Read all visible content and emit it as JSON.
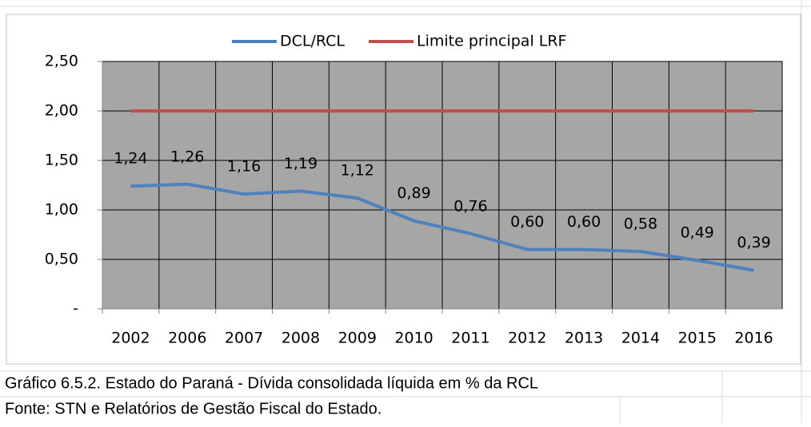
{
  "chart_data": {
    "type": "line",
    "categories": [
      "2002",
      "2006",
      "2007",
      "2008",
      "2009",
      "2010",
      "2011",
      "2012",
      "2013",
      "2014",
      "2015",
      "2016"
    ],
    "series": [
      {
        "name": "DCL/RCL",
        "color": "#4f81bd",
        "values": [
          1.24,
          1.26,
          1.16,
          1.19,
          1.12,
          0.89,
          0.76,
          0.6,
          0.6,
          0.58,
          0.49,
          0.39
        ],
        "value_labels": [
          "1,24",
          "1,26",
          "1,16",
          "1,19",
          "1,12",
          "0,89",
          "0,76",
          "0,60",
          "0,60",
          "0,58",
          "0,49",
          "0,39"
        ]
      },
      {
        "name": "Limite principal LRF",
        "color": "#c0504d",
        "values": [
          2,
          2,
          2,
          2,
          2,
          2,
          2,
          2,
          2,
          2,
          2,
          2
        ]
      }
    ],
    "ylim": [
      0,
      2.5
    ],
    "yticks": [
      {
        "value": 0,
        "label": "-"
      },
      {
        "value": 0.5,
        "label": "0,50"
      },
      {
        "value": 1,
        "label": "1,00"
      },
      {
        "value": 1.5,
        "label": "1,50"
      },
      {
        "value": 2,
        "label": "2,00"
      },
      {
        "value": 2.5,
        "label": "2,50"
      }
    ],
    "grid": true,
    "legend": "top",
    "plot_background": "#a6a6a6"
  },
  "caption": "Gráfico 6.5.2. Estado do Paraná -  Dívida consolidada líquida em % da RCL",
  "source": "Fonte: STN e Relatórios de Gestão Fiscal do Estado."
}
